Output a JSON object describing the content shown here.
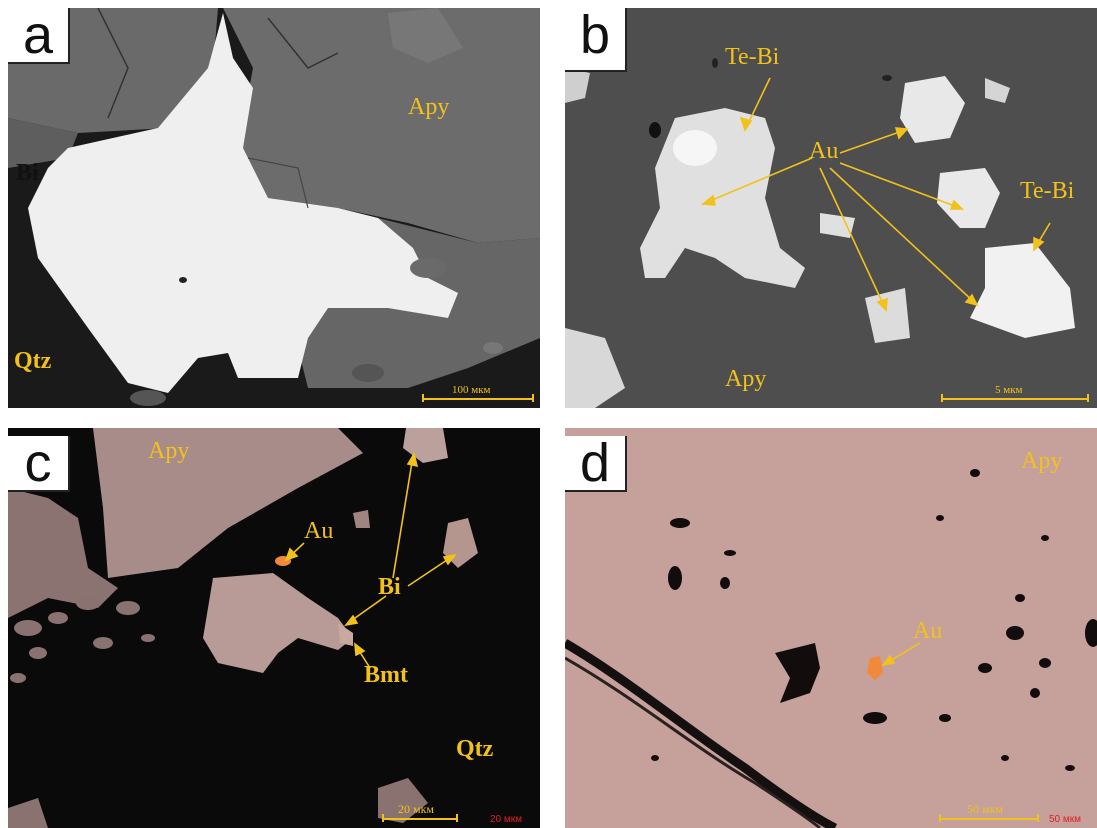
{
  "panels": {
    "a": {
      "letter": "a",
      "labels": {
        "apy": "Apy",
        "bi": "Bi",
        "qtz": "Qtz"
      },
      "scale": "100 мкм"
    },
    "b": {
      "letter": "b",
      "labels": {
        "tebi1": "Te-Bi",
        "au": "Au",
        "tebi2": "Te-Bi",
        "apy": "Apy"
      },
      "scale": "5 мкм"
    },
    "c": {
      "letter": "c",
      "labels": {
        "apy": "Apy",
        "au": "Au",
        "bi": "Bi",
        "bmt": "Bmt",
        "qtz": "Qtz"
      },
      "scale": "20 мкм",
      "scale_red": "20 мкм"
    },
    "d": {
      "letter": "d",
      "labels": {
        "apy": "Apy",
        "au": "Au"
      },
      "scale": "50 мкм",
      "scale_red": "50 мкм"
    }
  },
  "colors": {
    "label": "#f2c21a",
    "arrow": "#f2c21a",
    "bse_dark": "#535353",
    "bse_light": "#f0f0f0",
    "reflected_bg": "#0a0a0a",
    "reflected_apy": "#c9a5a2",
    "gold": "#f08a3a"
  }
}
